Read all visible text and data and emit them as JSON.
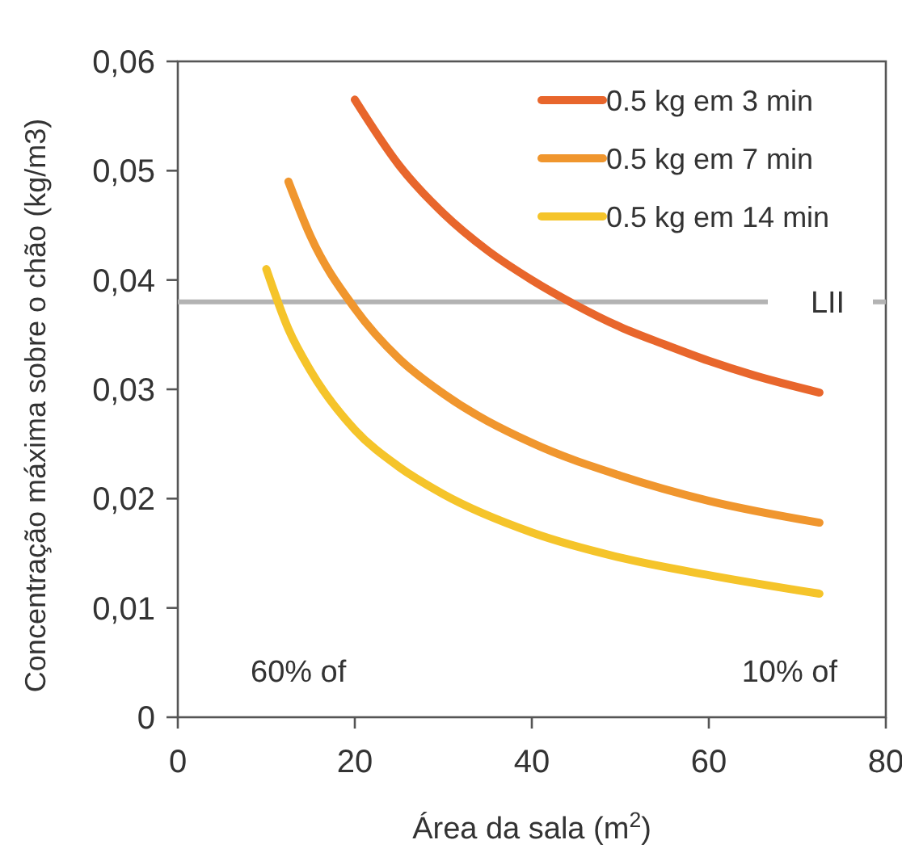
{
  "chart_data": {
    "type": "line",
    "xlabel": "Área da sala (m$^{2}$)",
    "ylabel": "Concentração  máxima sobre o chão  (kg/m3)",
    "xlim": [
      0,
      80
    ],
    "xticks": [
      0,
      20,
      40,
      60,
      80
    ],
    "ylim": [
      0,
      0.06
    ],
    "yticks": [
      0,
      {
        "value": 0.01,
        "label": "0,01"
      },
      {
        "value": 0.02,
        "label": "0,02"
      },
      {
        "value": 0.03,
        "label": "0,03"
      },
      {
        "value": 0.04,
        "label": "0,04"
      },
      {
        "value": 0.05,
        "label": "0,05"
      },
      {
        "value": 0.06,
        "label": "0,06"
      }
    ],
    "series": [
      {
        "name": "0.5 kg em 3 min",
        "color": "#e8662c",
        "x": [
          20,
          25,
          30,
          35,
          40,
          45,
          50,
          55,
          60,
          65,
          72.5
        ],
        "values": [
          0.0565,
          0.0505,
          0.0461,
          0.0427,
          0.04,
          0.0377,
          0.0357,
          0.0341,
          0.0326,
          0.0313,
          0.0297
        ]
      },
      {
        "name": "0.5 kg em 7 min",
        "color": "#f0962e",
        "x": [
          12.5,
          15,
          20,
          25,
          30,
          40,
          50,
          60,
          72.5
        ],
        "values": [
          0.049,
          0.044,
          0.0374,
          0.0328,
          0.0296,
          0.0251,
          0.0221,
          0.0198,
          0.0178
        ]
      },
      {
        "name": "0.5 kg em 14 min",
        "color": "#f5c42a",
        "x": [
          10,
          12.5,
          15,
          20,
          25,
          30,
          40,
          50,
          60,
          72.5
        ],
        "values": [
          0.041,
          0.0355,
          0.0317,
          0.0263,
          0.0229,
          0.0204,
          0.0169,
          0.0146,
          0.013,
          0.0113
        ]
      }
    ],
    "ref_lines": [
      {
        "axis": "y",
        "value": 0.038,
        "label": "LII",
        "color": "#b3b3b3"
      }
    ],
    "annotations": [
      "60% of",
      "10% of"
    ],
    "legend": "top right",
    "marker": "none",
    "line_style": "solid",
    "grid": false
  }
}
